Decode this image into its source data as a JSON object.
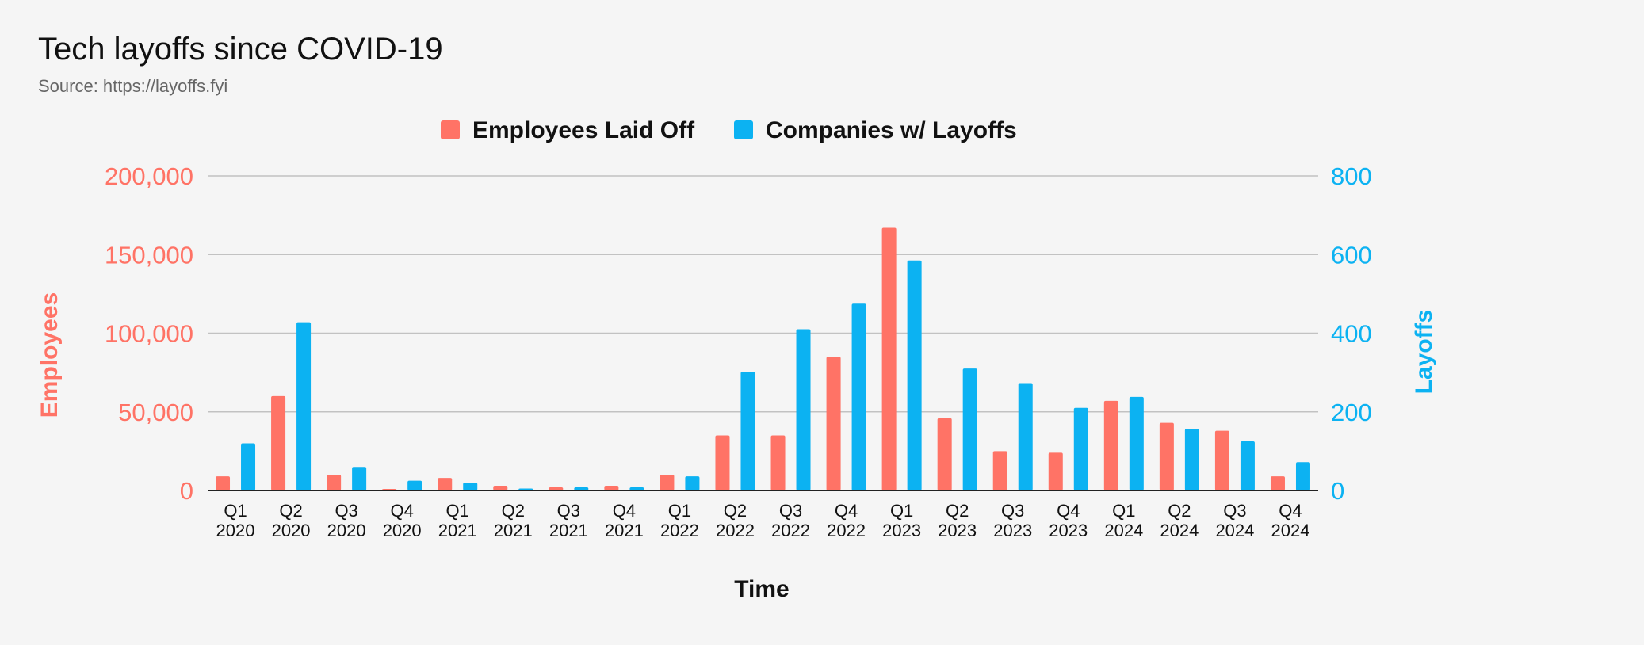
{
  "title": "Tech layoffs since COVID-19",
  "subtitle": "Source: https://layoffs.fyi",
  "colors": {
    "employees": "#ff7366",
    "companies": "#0cb2f2",
    "axis_text": "#111111",
    "grid": "#c2c2c2",
    "background": "#f5f5f5"
  },
  "chart_data": {
    "type": "bar",
    "xlabel": "Time",
    "ylabel_left": "Employees",
    "ylabel_right": "Layoffs",
    "ylim_left": [
      0,
      200000
    ],
    "ylim_right": [
      0,
      800
    ],
    "yticks_left": [
      "0",
      "50,000",
      "100,000",
      "150,000",
      "200,000"
    ],
    "yticks_right": [
      "0",
      "200",
      "400",
      "600",
      "800"
    ],
    "grid": true,
    "legend_position": "top-center",
    "categories": [
      [
        "Q1",
        "2020"
      ],
      [
        "Q2",
        "2020"
      ],
      [
        "Q3",
        "2020"
      ],
      [
        "Q4",
        "2020"
      ],
      [
        "Q1",
        "2021"
      ],
      [
        "Q2",
        "2021"
      ],
      [
        "Q3",
        "2021"
      ],
      [
        "Q4",
        "2021"
      ],
      [
        "Q1",
        "2022"
      ],
      [
        "Q2",
        "2022"
      ],
      [
        "Q3",
        "2022"
      ],
      [
        "Q4",
        "2022"
      ],
      [
        "Q1",
        "2023"
      ],
      [
        "Q2",
        "2023"
      ],
      [
        "Q3",
        "2023"
      ],
      [
        "Q4",
        "2023"
      ],
      [
        "Q1",
        "2024"
      ],
      [
        "Q2",
        "2024"
      ],
      [
        "Q3",
        "2024"
      ],
      [
        "Q4",
        "2024"
      ]
    ],
    "series": [
      {
        "name": "Employees Laid Off",
        "axis": "left",
        "color": "#ff7366",
        "values": [
          9000,
          60000,
          10000,
          1000,
          8000,
          3000,
          2000,
          3000,
          10000,
          35000,
          35000,
          85000,
          167000,
          46000,
          25000,
          24000,
          57000,
          43000,
          38000,
          9000
        ]
      },
      {
        "name": "Companies w/ Layoffs",
        "axis": "right",
        "color": "#0cb2f2",
        "values": [
          120,
          428,
          60,
          25,
          20,
          5,
          8,
          8,
          36,
          302,
          410,
          475,
          585,
          310,
          273,
          210,
          238,
          157,
          125,
          72
        ]
      }
    ]
  }
}
